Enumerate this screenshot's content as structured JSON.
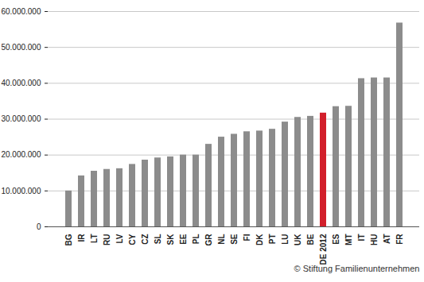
{
  "chart_data": {
    "type": "bar",
    "annotation": "© Stiftung Familienunternehmen",
    "categories": [
      "BG",
      "IR",
      "LT",
      "RU",
      "LV",
      "CY",
      "CZ",
      "SL",
      "SK",
      "EE",
      "PL",
      "GR",
      "NL",
      "SE",
      "FI",
      "DK",
      "PT",
      "LU",
      "UK",
      "BE",
      "DE 2012",
      "ES",
      "MT",
      "IT",
      "HU",
      "AT",
      "FR"
    ],
    "values": [
      10000000,
      14200000,
      15500000,
      16000000,
      16200000,
      17400000,
      18600000,
      19200000,
      19500000,
      20000000,
      20000000,
      23000000,
      25000000,
      25800000,
      26500000,
      26700000,
      27200000,
      29200000,
      30500000,
      30800000,
      31700000,
      33500000,
      33600000,
      41300000,
      41500000,
      41500000,
      56800000
    ],
    "colors": [
      "#8c8c8c",
      "#8c8c8c",
      "#8c8c8c",
      "#8c8c8c",
      "#8c8c8c",
      "#8c8c8c",
      "#8c8c8c",
      "#8c8c8c",
      "#8c8c8c",
      "#8c8c8c",
      "#8c8c8c",
      "#8c8c8c",
      "#8c8c8c",
      "#8c8c8c",
      "#8c8c8c",
      "#8c8c8c",
      "#8c8c8c",
      "#8c8c8c",
      "#8c8c8c",
      "#8c8c8c",
      "#d21f2b",
      "#8c8c8c",
      "#8c8c8c",
      "#8c8c8c",
      "#8c8c8c",
      "#8c8c8c",
      "#8c8c8c"
    ],
    "ylim": [
      0,
      60000000
    ],
    "yticks": [
      0,
      {
        "value": 10000000,
        "label": "10.000.000"
      },
      {
        "value": 20000000,
        "label": "20.000.000"
      },
      {
        "value": 30000000,
        "label": "30.000.000"
      },
      {
        "value": 40000000,
        "label": "40.000.000"
      },
      {
        "value": 50000000,
        "label": "50.000.000"
      },
      {
        "value": 60000000,
        "label": "60.000.000"
      }
    ],
    "grid": true
  }
}
